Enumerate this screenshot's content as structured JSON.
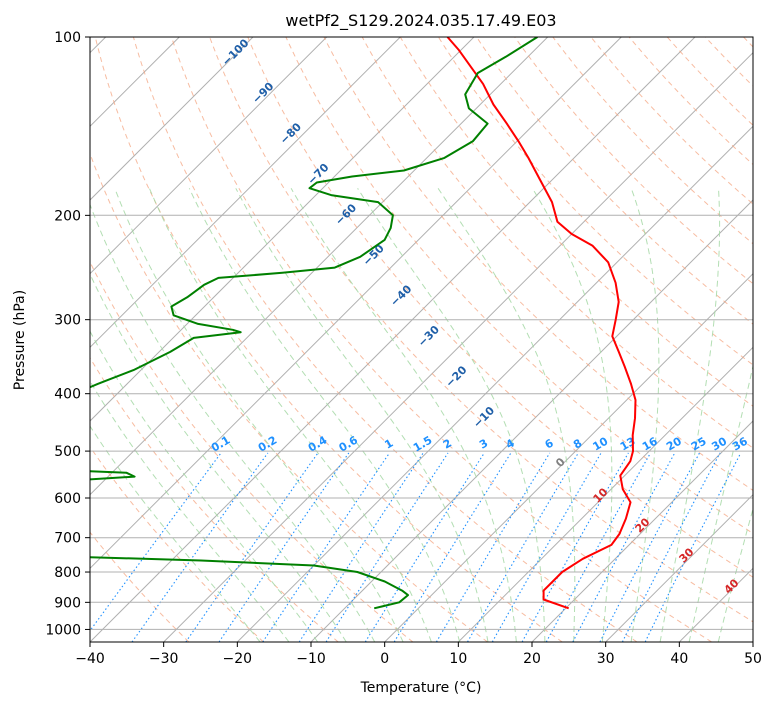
{
  "chart_data": {
    "type": "line",
    "subtype": "skew-T log-p diagram",
    "title": "wetPf2_S129.2024.035.17.49.E03",
    "xlabel": "Temperature (°C)",
    "ylabel": "Pressure (hPa)",
    "xlim": [
      -40,
      50
    ],
    "ylim": [
      1050,
      100
    ],
    "y_scale": "log",
    "grid": true,
    "x_ticks": [
      "−40",
      "−30",
      "−20",
      "−10",
      "0",
      "10",
      "20",
      "30",
      "40",
      "50"
    ],
    "x_tick_values": [
      -40,
      -30,
      -20,
      -10,
      0,
      10,
      20,
      30,
      40,
      50
    ],
    "y_ticks": [
      "100",
      "200",
      "300",
      "400",
      "500",
      "600",
      "700",
      "800",
      "900",
      "1000"
    ],
    "y_tick_values": [
      100,
      200,
      300,
      400,
      500,
      600,
      700,
      800,
      900,
      1000
    ],
    "series": [
      {
        "name": "temperature",
        "color": "#ff0000",
        "points": [
          [
            921,
            20.4
          ],
          [
            890,
            15.8
          ],
          [
            860,
            14.6
          ],
          [
            830,
            14.6
          ],
          [
            800,
            14.6
          ],
          [
            760,
            15.6
          ],
          [
            720,
            17.6
          ],
          [
            690,
            17.2
          ],
          [
            650,
            16.0
          ],
          [
            610,
            14.4
          ],
          [
            580,
            11.6
          ],
          [
            550,
            9.4
          ],
          [
            520,
            8.8
          ],
          [
            500,
            7.8
          ],
          [
            470,
            5.6
          ],
          [
            440,
            3.6
          ],
          [
            410,
            1.2
          ],
          [
            385,
            -1.6
          ],
          [
            360,
            -4.8
          ],
          [
            340,
            -7.6
          ],
          [
            320,
            -10.6
          ],
          [
            300,
            -12.4
          ],
          [
            280,
            -14.4
          ],
          [
            260,
            -17.4
          ],
          [
            240,
            -21.2
          ],
          [
            225,
            -25.6
          ],
          [
            215,
            -30.0
          ],
          [
            205,
            -33.6
          ],
          [
            190,
            -37.0
          ],
          [
            175,
            -41.4
          ],
          [
            160,
            -46.2
          ],
          [
            150,
            -49.8
          ],
          [
            140,
            -53.8
          ],
          [
            130,
            -58.2
          ],
          [
            120,
            -62.4
          ],
          [
            113,
            -66.0
          ],
          [
            105,
            -70.4
          ],
          [
            100,
            -73.6
          ]
        ]
      },
      {
        "name": "dewpoint",
        "color": "#008000",
        "points": [
          [
            921,
            -6.0
          ],
          [
            900,
            -3.4
          ],
          [
            875,
            -3.2
          ],
          [
            860,
            -4.6
          ],
          [
            830,
            -8.2
          ],
          [
            800,
            -13.2
          ],
          [
            780,
            -20.0
          ],
          [
            765,
            -36.0
          ],
          [
            750,
            -60.0
          ],
          [
            735,
            -90.0
          ],
          [
            732,
            -140.0
          ]
        ]
      },
      {
        "name": "dewpoint_mid",
        "color": "#008000",
        "points": [
          [
            528,
            -104.0
          ],
          [
            535,
            -72.0
          ],
          [
            544,
            -58.0
          ],
          [
            552,
            -56.4
          ],
          [
            560,
            -64.0
          ],
          [
            570,
            -82.0
          ],
          [
            580,
            -104.0
          ]
        ]
      },
      {
        "name": "dewpoint_upper",
        "color": "#008000",
        "points": [
          [
            400,
            -75.8
          ],
          [
            385,
            -74.0
          ],
          [
            365,
            -71.0
          ],
          [
            340,
            -68.5
          ],
          [
            322,
            -67.2
          ],
          [
            315,
            -61.6
          ],
          [
            312,
            -63.0
          ],
          [
            305,
            -68.5
          ],
          [
            295,
            -73.0
          ],
          [
            285,
            -74.5
          ],
          [
            275,
            -73.6
          ],
          [
            262,
            -73.0
          ],
          [
            255,
            -72.0
          ],
          [
            250,
            -64.0
          ],
          [
            245,
            -57.6
          ],
          [
            235,
            -55.6
          ],
          [
            220,
            -54.6
          ],
          [
            210,
            -55.4
          ],
          [
            200,
            -56.8
          ],
          [
            190,
            -60.6
          ],
          [
            185,
            -67.8
          ],
          [
            180,
            -71.8
          ],
          [
            176,
            -71.6
          ],
          [
            172,
            -67.6
          ],
          [
            168,
            -61.4
          ],
          [
            160,
            -57.6
          ],
          [
            150,
            -56.0
          ],
          [
            140,
            -56.4
          ],
          [
            132,
            -61.0
          ],
          [
            125,
            -63.4
          ],
          [
            115,
            -64.6
          ],
          [
            108,
            -63.0
          ],
          [
            100,
            -61.4
          ]
        ]
      }
    ],
    "background_lines": {
      "isotherms": {
        "color": "#b0b0b0",
        "style": "solid"
      },
      "dry_adiabats": {
        "color": "#f4a582",
        "style": "dashed",
        "labels": [
          "−100",
          "−90",
          "−80",
          "−70",
          "−60",
          "−50",
          "−40",
          "−30",
          "−20",
          "−10"
        ],
        "label_color": "#1f5fa8"
      },
      "moist_adiabats": {
        "color": "#a6d8a6",
        "style": "dashed",
        "labels": [
          "0",
          "10",
          "20",
          "30",
          "40"
        ],
        "label_color_cold": "#808080",
        "label_color_warm": "#d62728"
      },
      "mixing_ratio": {
        "color": "#1e90ff",
        "style": "dotted",
        "labels": [
          "0.1",
          "0.2",
          "0.4",
          "0.6",
          "1",
          "1.5",
          "2",
          "3",
          "4",
          "6",
          "8",
          "10",
          "13",
          "16",
          "20",
          "25",
          "30",
          "36"
        ]
      }
    }
  }
}
